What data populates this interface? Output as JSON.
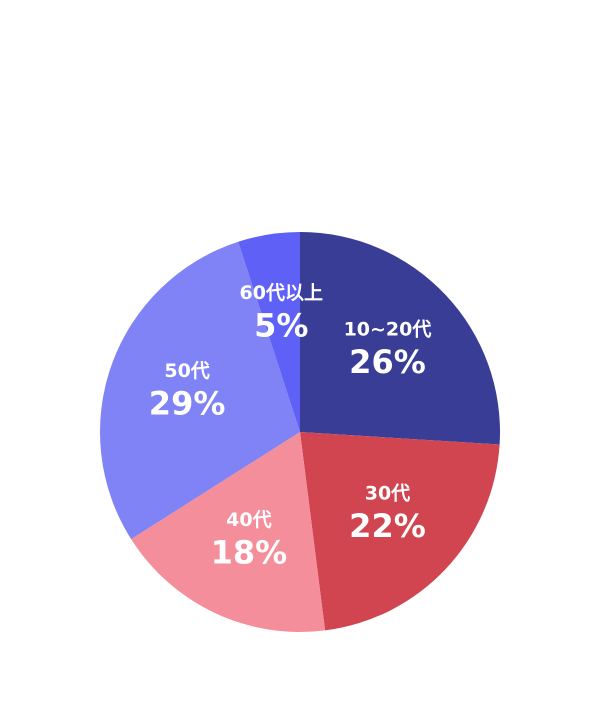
{
  "chart_data": {
    "type": "pie",
    "categories": [
      "10~20代",
      "30代",
      "40代",
      "50代",
      "60代以上"
    ],
    "values": [
      26,
      22,
      18,
      29,
      5
    ],
    "value_labels": [
      "26%",
      "22%",
      "18%",
      "29%",
      "5%"
    ],
    "colors": [
      "#3a3d96",
      "#d0454f",
      "#f48e9a",
      "#8083f5",
      "#5e60f6"
    ]
  }
}
